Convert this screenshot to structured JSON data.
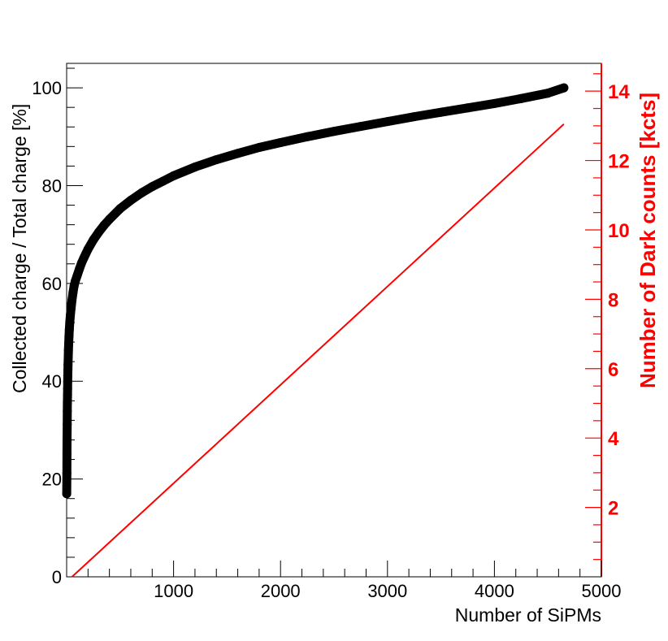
{
  "chart_data": {
    "type": "scatter",
    "title": "",
    "xlabel": "Number of SiPMs",
    "ylabel": "Collected charge / Total charge [%]",
    "y2label": "Number of Dark counts [kcts]",
    "xlim": [
      0,
      5000
    ],
    "ylim": [
      0,
      105
    ],
    "y2lim": [
      0,
      14.8
    ],
    "x_ticks": [
      0,
      1000,
      2000,
      3000,
      4000,
      5000
    ],
    "x_tick_labels": [
      "",
      "1000",
      "2000",
      "3000",
      "4000",
      "5000"
    ],
    "y_ticks": [
      0,
      20,
      40,
      60,
      80,
      100
    ],
    "y_tick_labels": [
      "0",
      "20",
      "40",
      "60",
      "80",
      "100"
    ],
    "y2_ticks": [
      2,
      4,
      6,
      8,
      10,
      12,
      14
    ],
    "y2_tick_labels": [
      "2",
      "4",
      "6",
      "8",
      "10",
      "12",
      "14"
    ],
    "grid": false,
    "legend": "none",
    "series": [
      {
        "axis": "left",
        "style": "markers",
        "color": "#000000",
        "x": [
          1,
          2,
          3,
          4,
          5,
          6,
          7,
          8,
          9,
          10,
          11,
          12,
          13,
          15,
          17,
          19,
          22,
          25,
          30,
          35,
          40,
          50,
          60,
          70,
          80,
          100,
          120,
          140,
          160,
          180,
          200,
          250,
          300,
          350,
          400,
          500,
          600,
          700,
          800,
          900,
          1000,
          1200,
          1400,
          1600,
          1800,
          2000,
          2250,
          2500,
          2750,
          3000,
          3250,
          3500,
          3750,
          4000,
          4250,
          4500,
          4650
        ],
        "y": [
          17.0,
          21.2,
          25.2,
          28.3,
          31.2,
          33.9,
          35.6,
          37.2,
          38.5,
          39.9,
          41.1,
          42.3,
          43.4,
          45.0,
          46.3,
          47.6,
          49.2,
          50.5,
          52.1,
          53.5,
          54.7,
          56.6,
          58.2,
          59.5,
          60.4,
          61.7,
          63.0,
          64.2,
          65.2,
          66.1,
          67.0,
          68.9,
          70.5,
          71.9,
          73.1,
          75.3,
          77.0,
          78.5,
          79.8,
          80.9,
          82.0,
          83.8,
          85.3,
          86.6,
          87.8,
          88.8,
          90.0,
          91.1,
          92.1,
          93.1,
          94.1,
          95.0,
          95.9,
          96.8,
          97.8,
          98.9,
          100.0
        ]
      },
      {
        "axis": "right",
        "style": "line",
        "color": "#ff0000",
        "x": [
          50,
          4650
        ],
        "y": [
          0.0,
          13.05
        ]
      }
    ]
  }
}
